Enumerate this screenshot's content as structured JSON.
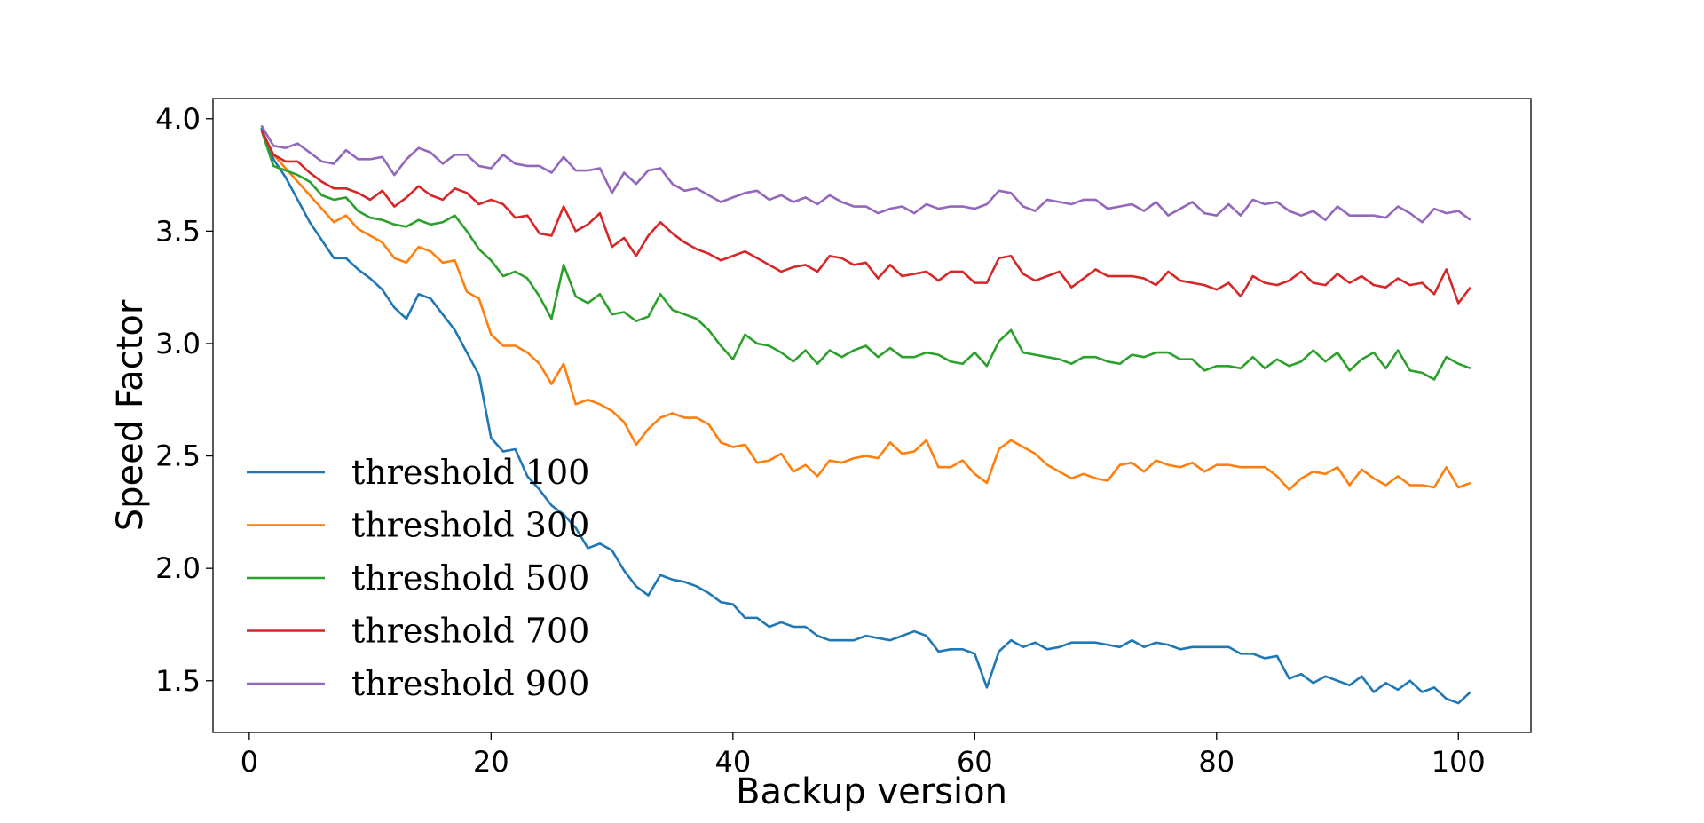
{
  "chart_data": {
    "type": "line",
    "title": "",
    "xlabel": "Backup version",
    "ylabel": "Speed Factor",
    "xlim": [
      -3,
      106
    ],
    "ylim": [
      1.27,
      4.09
    ],
    "xticks": [
      0,
      20,
      40,
      60,
      80,
      100
    ],
    "yticks": [
      1.5,
      2.0,
      2.5,
      3.0,
      3.5,
      4.0
    ],
    "xtick_labels": [
      "0",
      "20",
      "40",
      "60",
      "80",
      "100"
    ],
    "ytick_labels": [
      "1.5",
      "2.0",
      "2.5",
      "3.0",
      "3.5",
      "4.0"
    ],
    "grid": false,
    "legend_position": "lower-left",
    "x_start": 1,
    "series": [
      {
        "name": "threshold 100",
        "color": "#1f77b4",
        "values": [
          3.96,
          3.82,
          3.74,
          3.64,
          3.54,
          3.46,
          3.38,
          3.38,
          3.33,
          3.29,
          3.24,
          3.16,
          3.11,
          3.22,
          3.2,
          3.13,
          3.06,
          2.96,
          2.86,
          2.58,
          2.52,
          2.53,
          2.41,
          2.35,
          2.28,
          2.24,
          2.18,
          2.09,
          2.11,
          2.08,
          1.99,
          1.92,
          1.88,
          1.97,
          1.95,
          1.94,
          1.92,
          1.89,
          1.85,
          1.84,
          1.78,
          1.78,
          1.74,
          1.76,
          1.74,
          1.74,
          1.7,
          1.68,
          1.68,
          1.68,
          1.7,
          1.69,
          1.68,
          1.7,
          1.72,
          1.7,
          1.63,
          1.64,
          1.64,
          1.62,
          1.47,
          1.63,
          1.68,
          1.65,
          1.67,
          1.64,
          1.65,
          1.67,
          1.67,
          1.67,
          1.66,
          1.65,
          1.68,
          1.65,
          1.67,
          1.66,
          1.64,
          1.65,
          1.65,
          1.65,
          1.65,
          1.62,
          1.62,
          1.6,
          1.61,
          1.51,
          1.53,
          1.49,
          1.52,
          1.5,
          1.48,
          1.52,
          1.45,
          1.49,
          1.46,
          1.5,
          1.45,
          1.47,
          1.42,
          1.4,
          1.45
        ]
      },
      {
        "name": "threshold 300",
        "color": "#ff7f0e",
        "values": [
          3.95,
          3.84,
          3.78,
          3.72,
          3.66,
          3.6,
          3.54,
          3.57,
          3.51,
          3.48,
          3.45,
          3.38,
          3.36,
          3.43,
          3.41,
          3.36,
          3.37,
          3.23,
          3.2,
          3.04,
          2.99,
          2.99,
          2.96,
          2.91,
          2.82,
          2.91,
          2.73,
          2.75,
          2.73,
          2.7,
          2.65,
          2.55,
          2.62,
          2.67,
          2.69,
          2.67,
          2.67,
          2.64,
          2.56,
          2.54,
          2.55,
          2.47,
          2.48,
          2.51,
          2.43,
          2.46,
          2.41,
          2.48,
          2.47,
          2.49,
          2.5,
          2.49,
          2.56,
          2.51,
          2.52,
          2.57,
          2.45,
          2.45,
          2.48,
          2.42,
          2.38,
          2.53,
          2.57,
          2.54,
          2.51,
          2.46,
          2.43,
          2.4,
          2.42,
          2.4,
          2.39,
          2.46,
          2.47,
          2.43,
          2.48,
          2.46,
          2.45,
          2.47,
          2.43,
          2.46,
          2.46,
          2.45,
          2.45,
          2.45,
          2.41,
          2.35,
          2.4,
          2.43,
          2.42,
          2.45,
          2.37,
          2.44,
          2.4,
          2.37,
          2.41,
          2.37,
          2.37,
          2.36,
          2.45,
          2.36,
          2.38
        ]
      },
      {
        "name": "threshold 500",
        "color": "#2ca02c",
        "values": [
          3.95,
          3.79,
          3.77,
          3.75,
          3.72,
          3.66,
          3.64,
          3.65,
          3.59,
          3.56,
          3.55,
          3.53,
          3.52,
          3.55,
          3.53,
          3.54,
          3.57,
          3.5,
          3.42,
          3.37,
          3.3,
          3.32,
          3.29,
          3.21,
          3.11,
          3.35,
          3.21,
          3.18,
          3.22,
          3.13,
          3.14,
          3.1,
          3.12,
          3.22,
          3.15,
          3.13,
          3.11,
          3.06,
          2.99,
          2.93,
          3.04,
          3.0,
          2.99,
          2.96,
          2.92,
          2.97,
          2.91,
          2.97,
          2.94,
          2.97,
          2.99,
          2.94,
          2.98,
          2.94,
          2.94,
          2.96,
          2.95,
          2.92,
          2.91,
          2.96,
          2.9,
          3.01,
          3.06,
          2.96,
          2.95,
          2.94,
          2.93,
          2.91,
          2.94,
          2.94,
          2.92,
          2.91,
          2.95,
          2.94,
          2.96,
          2.96,
          2.93,
          2.93,
          2.88,
          2.9,
          2.9,
          2.89,
          2.94,
          2.89,
          2.93,
          2.9,
          2.92,
          2.97,
          2.92,
          2.96,
          2.88,
          2.93,
          2.96,
          2.89,
          2.97,
          2.88,
          2.87,
          2.84,
          2.94,
          2.91,
          2.89
        ]
      },
      {
        "name": "threshold 700",
        "color": "#d62728",
        "values": [
          3.95,
          3.84,
          3.81,
          3.81,
          3.76,
          3.72,
          3.69,
          3.69,
          3.67,
          3.64,
          3.68,
          3.61,
          3.65,
          3.7,
          3.66,
          3.64,
          3.69,
          3.67,
          3.62,
          3.64,
          3.62,
          3.56,
          3.57,
          3.49,
          3.48,
          3.61,
          3.5,
          3.53,
          3.58,
          3.43,
          3.47,
          3.39,
          3.48,
          3.54,
          3.49,
          3.45,
          3.42,
          3.4,
          3.37,
          3.39,
          3.41,
          3.38,
          3.35,
          3.32,
          3.34,
          3.35,
          3.32,
          3.39,
          3.38,
          3.35,
          3.36,
          3.29,
          3.35,
          3.3,
          3.31,
          3.32,
          3.28,
          3.32,
          3.32,
          3.27,
          3.27,
          3.38,
          3.39,
          3.31,
          3.28,
          3.3,
          3.32,
          3.25,
          3.29,
          3.33,
          3.3,
          3.3,
          3.3,
          3.29,
          3.26,
          3.32,
          3.28,
          3.27,
          3.26,
          3.24,
          3.27,
          3.21,
          3.3,
          3.27,
          3.26,
          3.28,
          3.32,
          3.27,
          3.26,
          3.31,
          3.27,
          3.3,
          3.26,
          3.25,
          3.29,
          3.26,
          3.27,
          3.22,
          3.33,
          3.18,
          3.25
        ]
      },
      {
        "name": "threshold 900",
        "color": "#9467bd",
        "values": [
          3.97,
          3.88,
          3.87,
          3.89,
          3.85,
          3.81,
          3.8,
          3.86,
          3.82,
          3.82,
          3.83,
          3.75,
          3.82,
          3.87,
          3.85,
          3.8,
          3.84,
          3.84,
          3.79,
          3.78,
          3.84,
          3.8,
          3.79,
          3.79,
          3.76,
          3.83,
          3.77,
          3.77,
          3.78,
          3.67,
          3.76,
          3.71,
          3.77,
          3.78,
          3.71,
          3.68,
          3.69,
          3.66,
          3.63,
          3.65,
          3.67,
          3.68,
          3.64,
          3.66,
          3.63,
          3.65,
          3.62,
          3.66,
          3.63,
          3.61,
          3.61,
          3.58,
          3.6,
          3.61,
          3.58,
          3.62,
          3.6,
          3.61,
          3.61,
          3.6,
          3.62,
          3.68,
          3.67,
          3.61,
          3.59,
          3.64,
          3.63,
          3.62,
          3.64,
          3.64,
          3.6,
          3.61,
          3.62,
          3.59,
          3.63,
          3.57,
          3.6,
          3.63,
          3.58,
          3.57,
          3.62,
          3.57,
          3.64,
          3.62,
          3.63,
          3.59,
          3.57,
          3.59,
          3.55,
          3.61,
          3.57,
          3.57,
          3.57,
          3.56,
          3.61,
          3.58,
          3.54,
          3.6,
          3.58,
          3.59,
          3.55
        ]
      }
    ]
  }
}
